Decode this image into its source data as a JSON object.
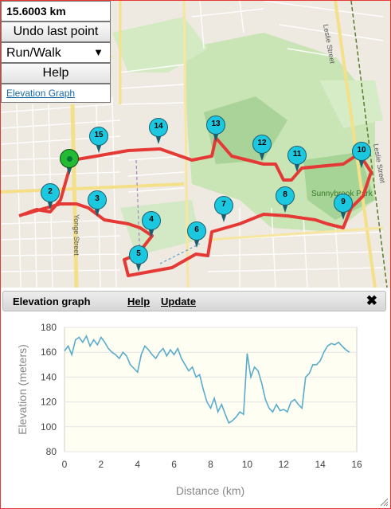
{
  "controls": {
    "distance": "15.6003 km",
    "undo_label": "Undo last point",
    "mode_selected": "Run/Walk",
    "help_label": "Help",
    "elevation_link": "Elevation Graph"
  },
  "map": {
    "street_labels": [
      "Yonge Street",
      "Leslie Street",
      "Leslie Street",
      "Sunnybrook Park"
    ],
    "markers": [
      "2",
      "3",
      "4",
      "5",
      "6",
      "7",
      "8",
      "9",
      "10",
      "11",
      "12",
      "13",
      "14",
      "15"
    ],
    "route_color": "#e53935"
  },
  "panel": {
    "title": "Elevation graph",
    "help": "Help",
    "update": "Update",
    "close_icon": "close-icon"
  },
  "chart_data": {
    "type": "line",
    "xlabel": "Distance (km)",
    "ylabel": "Elevation (meters)",
    "xlim": [
      0,
      16
    ],
    "ylim": [
      80,
      180
    ],
    "xticks": [
      0,
      2,
      4,
      6,
      8,
      10,
      12,
      14,
      16
    ],
    "yticks": [
      80,
      100,
      120,
      140,
      160,
      180
    ],
    "line_color": "#5aaccc",
    "x": [
      0,
      0.2,
      0.4,
      0.6,
      0.8,
      1.0,
      1.2,
      1.4,
      1.6,
      1.8,
      2.0,
      2.2,
      2.4,
      2.6,
      2.8,
      3.0,
      3.2,
      3.4,
      3.6,
      3.8,
      4.0,
      4.2,
      4.4,
      4.6,
      4.8,
      5.0,
      5.2,
      5.4,
      5.6,
      5.8,
      6.0,
      6.2,
      6.4,
      6.6,
      6.8,
      7.0,
      7.2,
      7.4,
      7.6,
      7.8,
      8.0,
      8.2,
      8.4,
      8.6,
      8.8,
      9.0,
      9.2,
      9.4,
      9.6,
      9.8,
      10.0,
      10.2,
      10.4,
      10.6,
      10.8,
      11.0,
      11.2,
      11.4,
      11.6,
      11.8,
      12.0,
      12.2,
      12.4,
      12.6,
      12.8,
      13.0,
      13.2,
      13.4,
      13.6,
      13.8,
      14.0,
      14.2,
      14.4,
      14.6,
      14.8,
      15.0,
      15.2,
      15.4,
      15.6
    ],
    "y": [
      161,
      165,
      158,
      170,
      172,
      168,
      173,
      165,
      170,
      166,
      172,
      168,
      163,
      160,
      158,
      155,
      160,
      157,
      150,
      147,
      144,
      158,
      165,
      162,
      158,
      155,
      160,
      163,
      157,
      162,
      158,
      163,
      155,
      150,
      145,
      148,
      140,
      142,
      130,
      120,
      115,
      123,
      112,
      118,
      110,
      103,
      105,
      108,
      112,
      110,
      159,
      140,
      148,
      145,
      135,
      122,
      115,
      112,
      118,
      113,
      114,
      112,
      120,
      122,
      118,
      115,
      140,
      143,
      150,
      150,
      153,
      160,
      165,
      167,
      166,
      168,
      165,
      162,
      160
    ]
  }
}
